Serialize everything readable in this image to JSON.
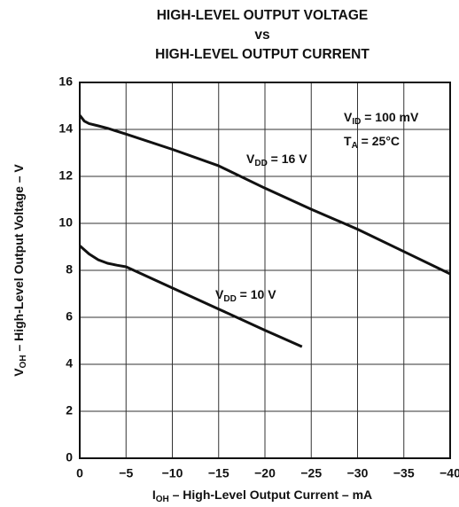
{
  "chart_data": {
    "type": "line",
    "title": [
      "HIGH-LEVEL OUTPUT VOLTAGE",
      "vs",
      "HIGH-LEVEL OUTPUT CURRENT"
    ],
    "x_label": {
      "base": "I",
      "sub": "OH",
      "text": " – High-Level Output Current – mA"
    },
    "y_label": {
      "base": "V",
      "sub": "OH",
      "text": " – High-Level Output Voltage – V"
    },
    "annotations": [
      {
        "base": "V",
        "sub": "ID",
        "text": " = 100 mV"
      },
      {
        "base": "T",
        "sub": "A",
        "text": " = 25°C"
      }
    ],
    "xlim": [
      0,
      -40
    ],
    "ylim": [
      0,
      16
    ],
    "xticks": [
      0,
      {
        "value": -5,
        "label": "−5"
      },
      {
        "value": -10,
        "label": "−10"
      },
      {
        "value": -15,
        "label": "−15"
      },
      {
        "value": -20,
        "label": "−20"
      },
      {
        "value": -25,
        "label": "−25"
      },
      {
        "value": -30,
        "label": "−30"
      },
      {
        "value": -35,
        "label": "−35"
      },
      {
        "value": -40,
        "label": "−40"
      }
    ],
    "yticks": [
      0,
      2,
      4,
      6,
      8,
      10,
      12,
      14,
      16
    ],
    "grid": true,
    "series": [
      {
        "label": {
          "base": "V",
          "sub": "DD",
          "text": " = 16 V"
        },
        "color": "#111111",
        "x": [
          0,
          -0.5,
          -1,
          -2,
          -3,
          -5,
          -10,
          -15,
          -20,
          -25,
          -30,
          -35,
          -40
        ],
        "values": [
          14.6,
          14.35,
          14.25,
          14.15,
          14.05,
          13.8,
          13.15,
          12.45,
          11.5,
          10.6,
          9.75,
          8.8,
          7.85
        ]
      },
      {
        "label": {
          "base": "V",
          "sub": "DD",
          "text": " = 10 V"
        },
        "color": "#111111",
        "x": [
          0,
          -1,
          -2,
          -3,
          -4,
          -5,
          -10,
          -15,
          -20,
          -24
        ],
        "values": [
          9.05,
          8.7,
          8.45,
          8.3,
          8.22,
          8.15,
          7.25,
          6.35,
          5.45,
          4.75
        ]
      }
    ]
  }
}
